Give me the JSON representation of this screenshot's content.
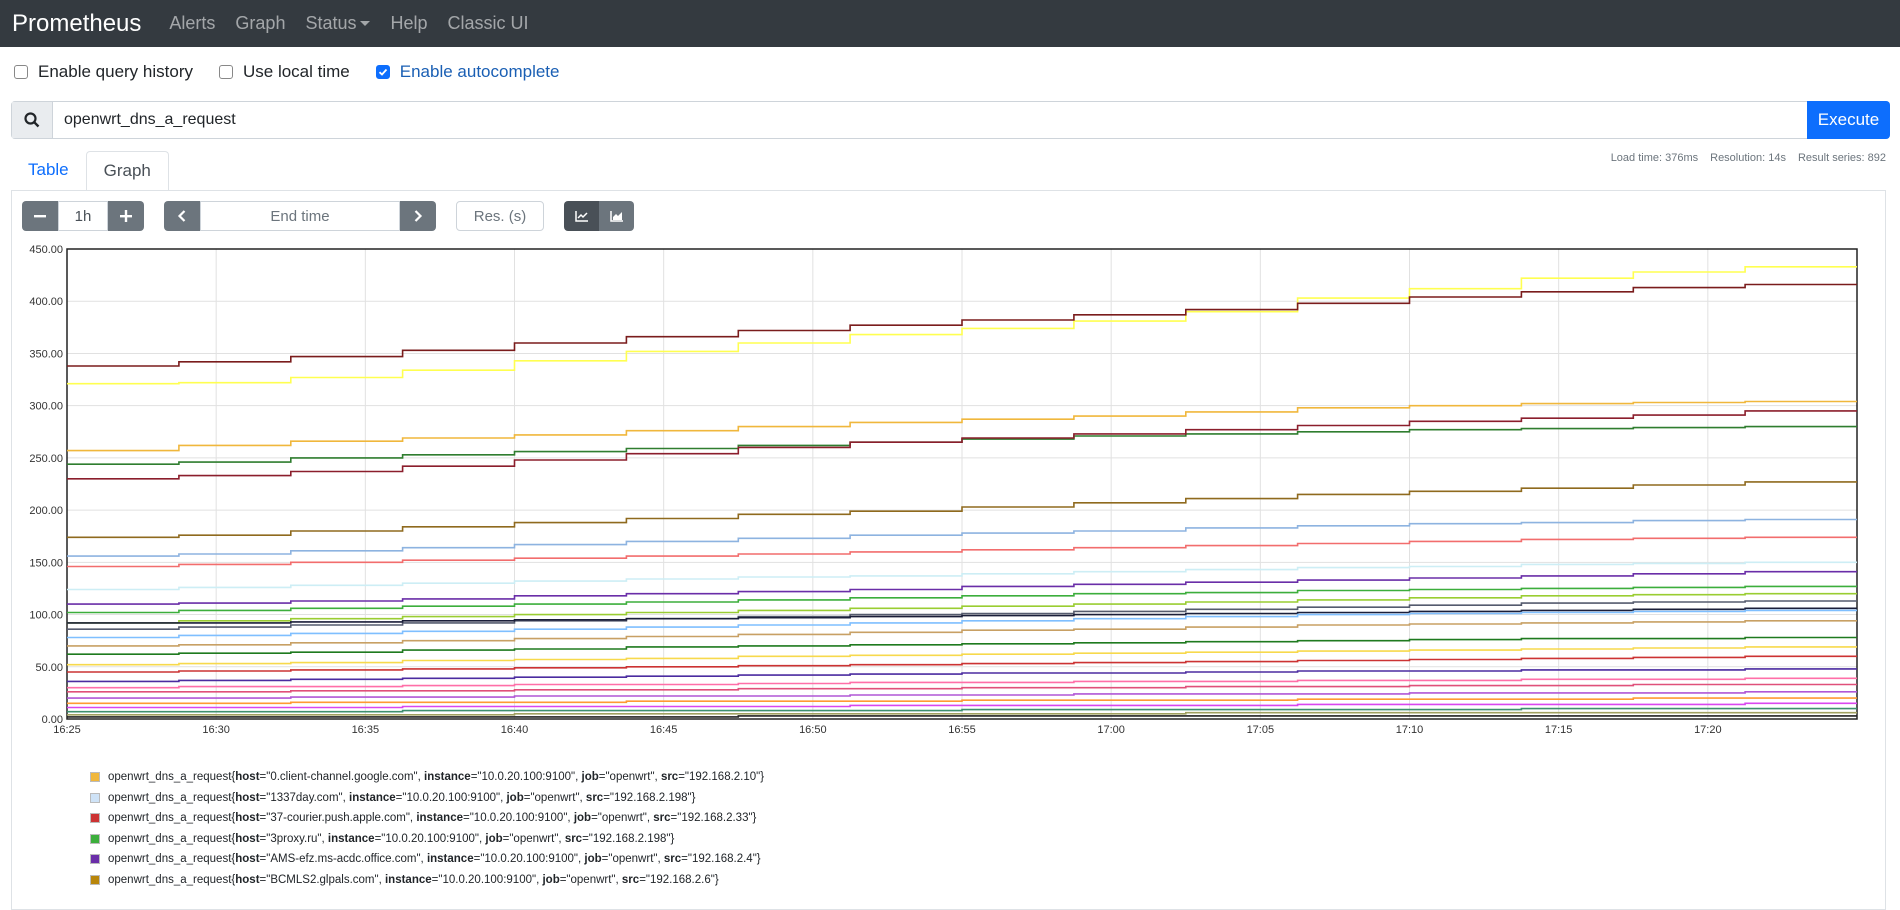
{
  "navbar": {
    "brand": "Prometheus",
    "links": [
      "Alerts",
      "Graph",
      "Status",
      "Help",
      "Classic UI"
    ]
  },
  "options": {
    "query_history": "Enable query history",
    "local_time": "Use local time",
    "autocomplete": "Enable autocomplete",
    "query_history_checked": false,
    "local_time_checked": false,
    "autocomplete_checked": true
  },
  "query": {
    "expression": "openwrt_dns_a_request",
    "execute_label": "Execute"
  },
  "tabs": [
    "Table",
    "Graph"
  ],
  "active_tab": "Graph",
  "stats": {
    "load_time": "Load time: 376ms",
    "resolution": "Resolution: 14s",
    "result_series": "Result series: 892"
  },
  "controls": {
    "minus": "−",
    "range": "1h",
    "plus": "+",
    "end_time_placeholder": "End time",
    "res_placeholder": "Res. (s)"
  },
  "chart_data": {
    "type": "line",
    "ylim": [
      0,
      450
    ],
    "y_ticks": [
      "0.00",
      "50.00",
      "100.00",
      "150.00",
      "200.00",
      "250.00",
      "300.00",
      "350.00",
      "400.00",
      "450.00"
    ],
    "x_ticks": [
      "16:25",
      "16:30",
      "16:35",
      "16:40",
      "16:45",
      "16:50",
      "16:55",
      "17:00",
      "17:05",
      "17:10",
      "17:15",
      "17:20"
    ],
    "x_range_minutes": [
      0,
      60
    ],
    "grid": true,
    "series": [
      {
        "color": "#ffff50",
        "values": [
          321,
          322,
          327,
          334,
          343,
          352,
          360,
          368,
          374,
          381,
          390,
          403,
          412,
          422,
          428,
          433
        ]
      },
      {
        "color": "#7a1c1c",
        "values": [
          338,
          342,
          347,
          353,
          360,
          366,
          372,
          377,
          382,
          387,
          392,
          398,
          404,
          409,
          413,
          416
        ]
      },
      {
        "color": "#f0b73c",
        "values": [
          257,
          262,
          266,
          269,
          272,
          276,
          280,
          284,
          287,
          290,
          294,
          298,
          300,
          302,
          303,
          304
        ]
      },
      {
        "color": "#2f7d2f",
        "values": [
          244,
          246,
          250,
          253,
          256,
          259,
          262,
          265,
          268,
          271,
          273,
          275,
          277,
          278,
          279,
          280
        ]
      },
      {
        "color": "#8b1e2c",
        "values": [
          230,
          233,
          237,
          242,
          248,
          254,
          260,
          265,
          269,
          273,
          277,
          281,
          285,
          288,
          291,
          295
        ]
      },
      {
        "color": "#8f6a1e",
        "values": [
          174,
          176,
          180,
          184,
          188,
          192,
          196,
          199,
          203,
          207,
          211,
          215,
          218,
          221,
          224,
          227
        ]
      },
      {
        "color": "#8db3e0",
        "values": [
          156,
          158,
          161,
          164,
          167,
          170,
          173,
          176,
          178,
          180,
          183,
          185,
          187,
          188,
          190,
          191
        ]
      },
      {
        "color": "#f26d6d",
        "values": [
          146,
          148,
          150,
          152,
          154,
          156,
          158,
          160,
          162,
          164,
          166,
          168,
          170,
          172,
          173,
          174
        ]
      },
      {
        "color": "#cdeef5",
        "values": [
          124,
          126,
          128,
          130,
          132,
          134,
          136,
          137,
          139,
          141,
          143,
          145,
          146,
          148,
          149,
          150
        ]
      },
      {
        "color": "#6a2ea8",
        "values": [
          110,
          111,
          113,
          115,
          118,
          120,
          122,
          124,
          127,
          129,
          131,
          133,
          135,
          137,
          139,
          141
        ]
      },
      {
        "color": "#3cae3c",
        "values": [
          102,
          104,
          106,
          108,
          110,
          112,
          114,
          116,
          118,
          120,
          121,
          123,
          124,
          125,
          126,
          127
        ]
      },
      {
        "color": "#9acd32",
        "values": [
          92,
          94,
          96,
          98,
          100,
          102,
          104,
          106,
          108,
          110,
          112,
          114,
          116,
          118,
          119,
          120
        ]
      },
      {
        "color": "#555b6e",
        "values": [
          86,
          88,
          90,
          92,
          94,
          96,
          98,
          100,
          101,
          103,
          105,
          107,
          109,
          111,
          112,
          113
        ]
      },
      {
        "color": "#1b1f3a",
        "values": [
          92,
          92,
          93,
          94,
          95,
          96,
          97,
          98,
          99,
          100,
          101,
          102,
          103,
          104,
          105,
          106
        ]
      },
      {
        "color": "#7fbfff",
        "values": [
          78,
          80,
          82,
          84,
          86,
          88,
          90,
          92,
          94,
          96,
          98,
          100,
          101,
          102,
          103,
          104
        ]
      },
      {
        "color": "#c8a064",
        "values": [
          70,
          71,
          73,
          75,
          77,
          79,
          81,
          83,
          85,
          86,
          88,
          90,
          91,
          92,
          93,
          94
        ]
      },
      {
        "color": "#1f7a1f",
        "values": [
          62,
          63,
          64,
          66,
          67,
          69,
          70,
          71,
          72,
          73,
          74,
          75,
          76,
          77,
          77,
          78
        ]
      },
      {
        "color": "#f7d94c",
        "values": [
          52,
          53,
          54,
          56,
          57,
          58,
          60,
          61,
          62,
          63,
          64,
          65,
          66,
          67,
          68,
          69
        ]
      },
      {
        "color": "#cc3333",
        "values": [
          45,
          46,
          47,
          48,
          49,
          50,
          51,
          52,
          53,
          54,
          55,
          56,
          57,
          58,
          59,
          60
        ]
      },
      {
        "color": "#4b2ca0",
        "values": [
          36,
          37,
          38,
          39,
          40,
          41,
          42,
          43,
          44,
          44,
          45,
          46,
          46,
          47,
          47,
          48
        ]
      },
      {
        "color": "#ff6fa8",
        "values": [
          30,
          31,
          31,
          32,
          33,
          33,
          34,
          35,
          35,
          36,
          36,
          37,
          37,
          38,
          38,
          39
        ]
      },
      {
        "color": "#e0507a",
        "values": [
          26,
          26,
          27,
          27,
          28,
          28,
          29,
          29,
          30,
          30,
          31,
          31,
          32,
          32,
          33,
          33
        ]
      },
      {
        "color": "#b057d6",
        "values": [
          20,
          20,
          21,
          21,
          22,
          22,
          22,
          23,
          23,
          24,
          24,
          24,
          25,
          25,
          25,
          26
        ]
      },
      {
        "color": "#ff9933",
        "values": [
          15,
          15,
          16,
          16,
          16,
          17,
          17,
          17,
          18,
          18,
          18,
          19,
          19,
          19,
          20,
          20
        ]
      },
      {
        "color": "#d946ef",
        "values": [
          11,
          11,
          11,
          12,
          12,
          12,
          12,
          13,
          13,
          13,
          13,
          14,
          14,
          14,
          14,
          15
        ]
      },
      {
        "color": "#3d8f6e",
        "values": [
          7,
          7,
          7,
          8,
          8,
          8,
          8,
          8,
          9,
          9,
          9,
          9,
          9,
          10,
          10,
          10
        ]
      },
      {
        "color": "#a0a060",
        "values": [
          4,
          4,
          4,
          4,
          5,
          5,
          5,
          5,
          5,
          5,
          6,
          6,
          6,
          6,
          6,
          6
        ]
      },
      {
        "color": "#222222",
        "values": [
          2,
          2,
          2,
          2,
          2,
          2,
          3,
          3,
          3,
          3,
          3,
          3,
          3,
          3,
          3,
          3
        ]
      }
    ]
  },
  "legend": [
    {
      "color": "#f0b73c",
      "metric": "openwrt_dns_a_request",
      "host": "0.client-channel.google.com",
      "instance": "10.0.20.100:9100",
      "job": "openwrt",
      "src": "192.168.2.10"
    },
    {
      "color": "#cfe3f7",
      "metric": "openwrt_dns_a_request",
      "host": "1337day.com",
      "instance": "10.0.20.100:9100",
      "job": "openwrt",
      "src": "192.168.2.198"
    },
    {
      "color": "#cc3333",
      "metric": "openwrt_dns_a_request",
      "host": "37-courier.push.apple.com",
      "instance": "10.0.20.100:9100",
      "job": "openwrt",
      "src": "192.168.2.33"
    },
    {
      "color": "#3cae3c",
      "metric": "openwrt_dns_a_request",
      "host": "3proxy.ru",
      "instance": "10.0.20.100:9100",
      "job": "openwrt",
      "src": "192.168.2.198"
    },
    {
      "color": "#6a2ea8",
      "metric": "openwrt_dns_a_request",
      "host": "AMS-efz.ms-acdc.office.com",
      "instance": "10.0.20.100:9100",
      "job": "openwrt",
      "src": "192.168.2.4"
    },
    {
      "color": "#b8860b",
      "metric": "openwrt_dns_a_request",
      "host": "BCMLS2.glpals.com",
      "instance": "10.0.20.100:9100",
      "job": "openwrt",
      "src": "192.168.2.6"
    }
  ]
}
